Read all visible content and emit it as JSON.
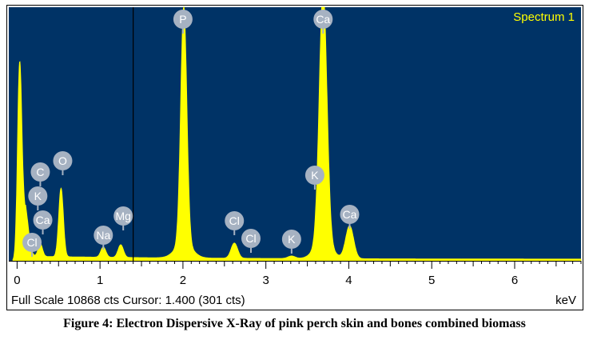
{
  "chart_data": {
    "type": "line",
    "title": "Spectrum 1",
    "xlabel": "keV",
    "ylabel": "",
    "xlim": [
      -0.1,
      6.8
    ],
    "ylim": [
      0,
      1
    ],
    "x_ticks": [
      "0",
      "1",
      "2",
      "3",
      "4",
      "5",
      "6"
    ],
    "full_scale_counts": 10868,
    "cursor_kev": 1.4,
    "cursor_counts": 301,
    "footer": "Full Scale 10868 cts Cursor: 1.400  (301 cts)",
    "peaks": [
      {
        "label": "C",
        "kev": 0.28,
        "rel_height": 0.05
      },
      {
        "label": "O",
        "kev": 0.53,
        "rel_height": 0.27
      },
      {
        "label": "Na",
        "kev": 1.04,
        "rel_height": 0.04
      },
      {
        "label": "Mg",
        "kev": 1.25,
        "rel_height": 0.05
      },
      {
        "label": "P",
        "kev": 2.01,
        "rel_height": 0.93
      },
      {
        "label": "Cl",
        "kev": 2.62,
        "rel_height": 0.06
      },
      {
        "label": "K",
        "kev": 3.31,
        "rel_height": 0.01
      },
      {
        "label": "Ca",
        "kev": 3.69,
        "rel_height": 0.99
      },
      {
        "label": "Ca",
        "kev": 4.01,
        "rel_height": 0.13
      }
    ],
    "badges": [
      {
        "label": "P",
        "kev": 2.0
      },
      {
        "label": "Ca",
        "kev": 3.69
      },
      {
        "label": "O",
        "kev": 0.55
      },
      {
        "label": "C",
        "kev": 0.28
      },
      {
        "label": "K",
        "kev": 0.25
      },
      {
        "label": "Ca",
        "kev": 0.31
      },
      {
        "label": "Cl",
        "kev": 0.18
      },
      {
        "label": "Na",
        "kev": 1.04
      },
      {
        "label": "Mg",
        "kev": 1.28
      },
      {
        "label": "Cl",
        "kev": 2.62
      },
      {
        "label": "Cl",
        "kev": 2.82
      },
      {
        "label": "K",
        "kev": 3.31
      },
      {
        "label": "K",
        "kev": 3.59
      },
      {
        "label": "Ca",
        "kev": 4.01
      }
    ]
  },
  "colors": {
    "plot_background": "#003366",
    "spectrum_fill": "#ffff00",
    "badge": "#a6b2c2",
    "cursor_line": "#000000"
  },
  "caption": "Figure 4: Electron Dispersive X-Ray of pink perch skin and bones combined biomass"
}
